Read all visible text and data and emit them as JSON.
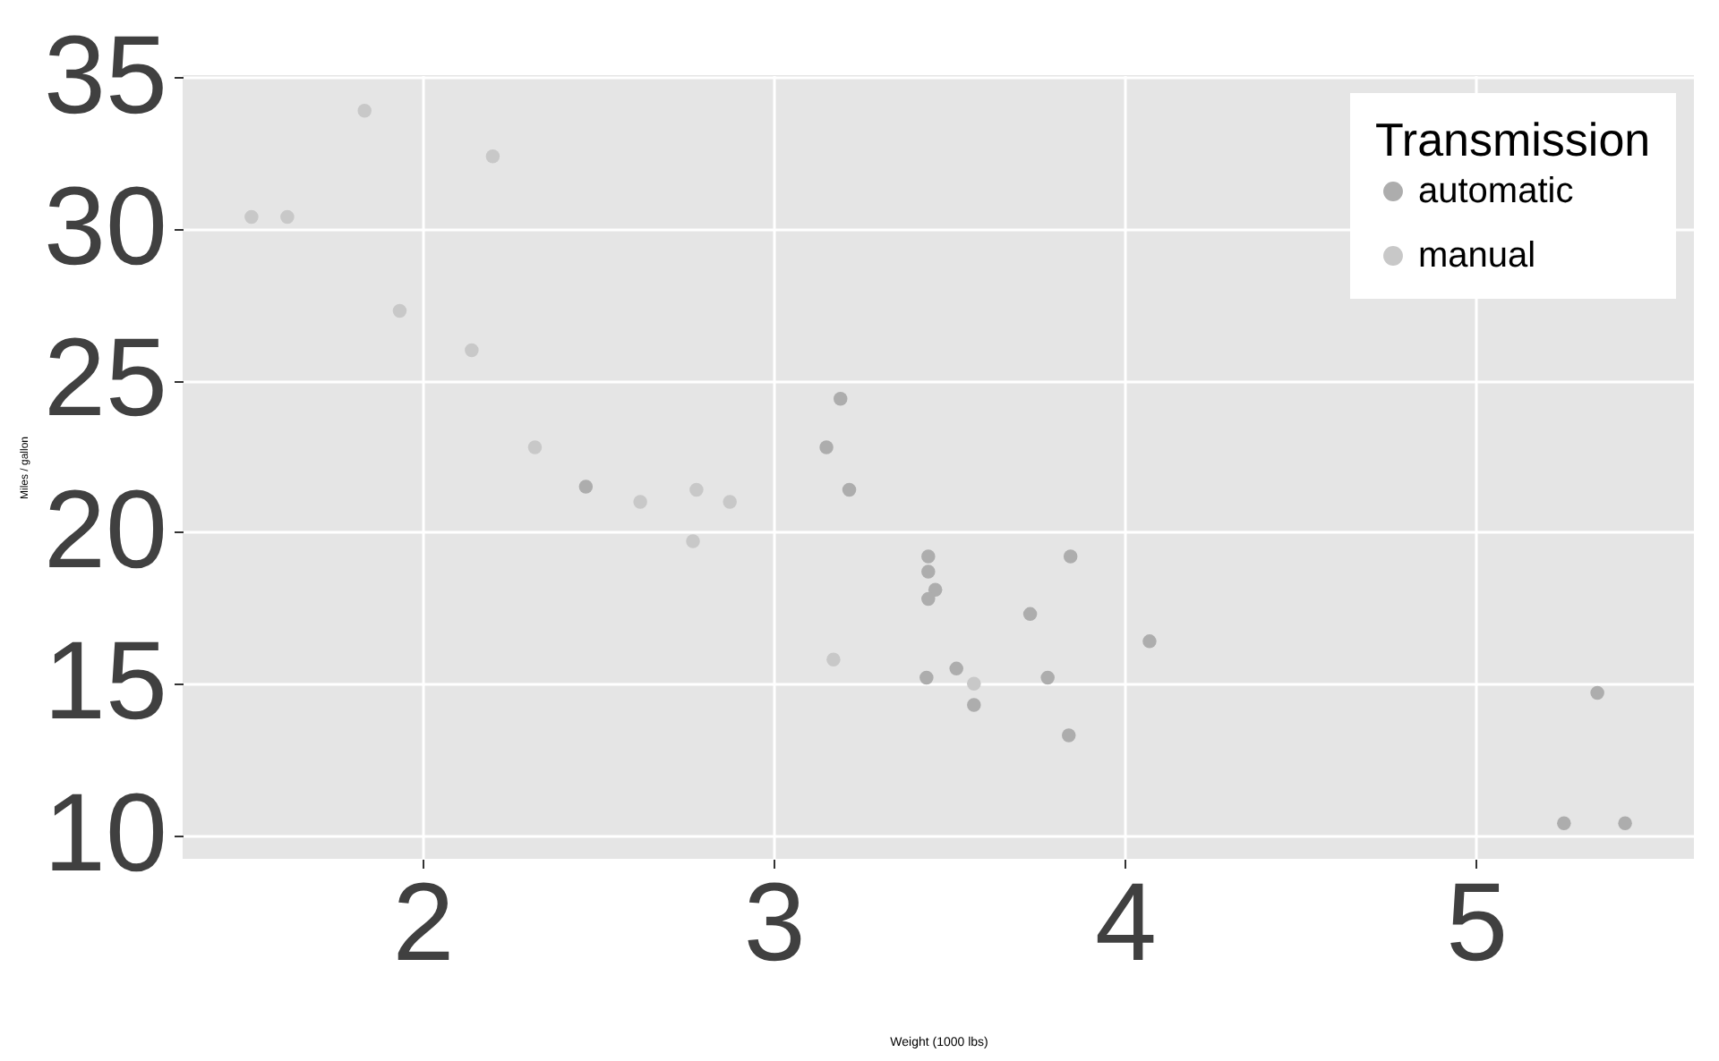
{
  "chart_data": {
    "type": "scatter",
    "xlabel": "Weight (1000 lbs)",
    "ylabel": "Miles / gallon",
    "legend_title": "Transmission",
    "xlim": [
      1.317,
      5.62
    ],
    "ylim": [
      9.225,
      35.075
    ],
    "xticks": [
      2,
      3,
      4,
      5
    ],
    "yticks": [
      10,
      15,
      20,
      25,
      30,
      35
    ],
    "grid": true,
    "legend": "top right",
    "marker": "circle",
    "series": [
      {
        "name": "automatic",
        "color": "#adadad",
        "x": [
          3.215,
          3.44,
          3.46,
          3.57,
          3.19,
          3.15,
          3.44,
          3.44,
          4.07,
          3.73,
          3.78,
          5.25,
          5.424,
          5.345,
          2.465,
          3.52,
          3.435,
          3.84,
          3.845
        ],
        "values": [
          21.4,
          18.7,
          18.1,
          14.3,
          24.4,
          22.8,
          19.2,
          17.8,
          16.4,
          17.3,
          15.2,
          10.4,
          10.4,
          14.7,
          21.5,
          15.5,
          15.2,
          13.3,
          19.2
        ]
      },
      {
        "name": "manual",
        "color": "#c8c8c8",
        "x": [
          2.62,
          2.875,
          2.32,
          2.2,
          1.615,
          1.835,
          1.935,
          2.14,
          1.513,
          3.17,
          2.77,
          3.57,
          2.78
        ],
        "values": [
          21.0,
          21.0,
          22.8,
          32.4,
          30.4,
          33.9,
          27.3,
          26.0,
          30.4,
          15.8,
          19.7,
          15.0,
          21.4
        ]
      }
    ]
  }
}
